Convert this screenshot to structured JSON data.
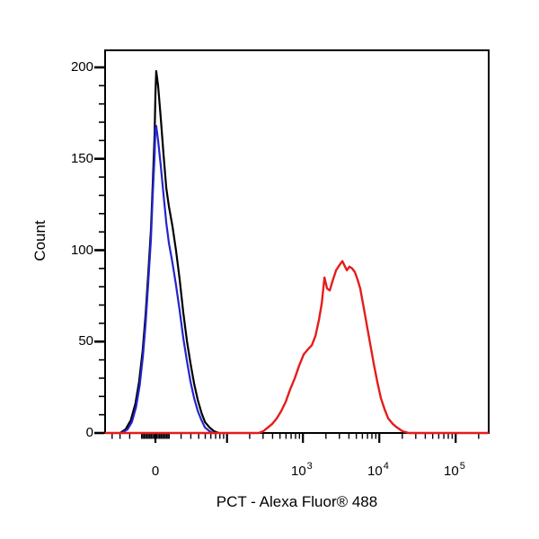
{
  "figure": {
    "y_axis": {
      "label": "Count",
      "major_ticks": [
        0,
        50,
        100,
        150,
        200
      ],
      "minor_step": 10,
      "range": [
        0,
        209
      ]
    },
    "x_axis": {
      "label": "PCT - Alexa Fluor® 488",
      "scale": "biexponential",
      "zero_label": "0",
      "decade_labels": [
        {
          "base": "10",
          "exp": "3",
          "value": 1000
        },
        {
          "base": "10",
          "exp": "4",
          "value": 10000
        },
        {
          "base": "10",
          "exp": "5",
          "value": 100000
        }
      ]
    }
  },
  "chart_data": {
    "type": "line",
    "subtype": "flow-cytometry-histogram-overlay",
    "title": "",
    "xlabel": "PCT - Alexa Fluor® 488",
    "ylabel": "Count",
    "x_scale": "biexponential (asinh), labeled ticks 0, 10^3, 10^4, 10^5",
    "x_tick_labels": [
      "0",
      "10^3",
      "10^4",
      "10^5"
    ],
    "ylim": [
      0,
      209
    ],
    "grid": false,
    "legend": "none",
    "series": [
      {
        "name": "black",
        "color": "#000000",
        "peak_x": 0,
        "peak_count": 198,
        "points": [
          [
            -30,
            0
          ],
          [
            -24,
            2
          ],
          [
            -19,
            7
          ],
          [
            -15,
            16
          ],
          [
            -12,
            28
          ],
          [
            -9.2,
            45
          ],
          [
            -7,
            65
          ],
          [
            -5.1,
            87
          ],
          [
            -3.2,
            111
          ],
          [
            -1.9,
            136
          ],
          [
            -0.6,
            163
          ],
          [
            0,
            185
          ],
          [
            0.6,
            198
          ],
          [
            1.9,
            190
          ],
          [
            3.8,
            172
          ],
          [
            5.8,
            152
          ],
          [
            7.8,
            134
          ],
          [
            9.8,
            124
          ],
          [
            12.6,
            113
          ],
          [
            15.5,
            100
          ],
          [
            18.7,
            84
          ],
          [
            22,
            66
          ],
          [
            25.8,
            50
          ],
          [
            29.7,
            38
          ],
          [
            34,
            27
          ],
          [
            38.8,
            18
          ],
          [
            44,
            11
          ],
          [
            49.6,
            6
          ],
          [
            57.6,
            3
          ],
          [
            66.4,
            1
          ],
          [
            78,
            0
          ]
        ]
      },
      {
        "name": "blue",
        "color": "#2424cc",
        "peak_x": 0,
        "peak_count": 168,
        "points": [
          [
            -28,
            0
          ],
          [
            -22,
            2
          ],
          [
            -18,
            6
          ],
          [
            -14.5,
            14
          ],
          [
            -11.5,
            26
          ],
          [
            -9,
            42
          ],
          [
            -7,
            60
          ],
          [
            -5.1,
            82
          ],
          [
            -3.2,
            106
          ],
          [
            -1.9,
            130
          ],
          [
            -0.6,
            152
          ],
          [
            0,
            166
          ],
          [
            0.6,
            168
          ],
          [
            1.9,
            160
          ],
          [
            3.8,
            146
          ],
          [
            5.8,
            130
          ],
          [
            7.8,
            115
          ],
          [
            9.8,
            104
          ],
          [
            12.6,
            93
          ],
          [
            15.5,
            81
          ],
          [
            18.7,
            67
          ],
          [
            22,
            52
          ],
          [
            25.8,
            39
          ],
          [
            29.7,
            28
          ],
          [
            34,
            19
          ],
          [
            38.8,
            12
          ],
          [
            44,
            7
          ],
          [
            49.6,
            3
          ],
          [
            57.6,
            1
          ],
          [
            64,
            0
          ]
        ]
      },
      {
        "name": "red",
        "color": "#e51c1c",
        "peak_x": 3278,
        "peak_count": 94,
        "baseline_full_width": true,
        "points": [
          [
            263,
            0
          ],
          [
            302,
            1
          ],
          [
            346,
            3
          ],
          [
            396,
            5
          ],
          [
            454,
            8
          ],
          [
            519,
            12
          ],
          [
            594,
            17
          ],
          [
            681,
            24
          ],
          [
            782,
            30
          ],
          [
            894,
            37
          ],
          [
            1025,
            43
          ],
          [
            1175,
            46
          ],
          [
            1308,
            48
          ],
          [
            1458,
            53
          ],
          [
            1624,
            62
          ],
          [
            1764,
            71
          ],
          [
            1912,
            85
          ],
          [
            2073,
            79
          ],
          [
            2244,
            78
          ],
          [
            2434,
            83
          ],
          [
            2712,
            89
          ],
          [
            3023,
            92
          ],
          [
            3278,
            94
          ],
          [
            3557,
            91
          ],
          [
            3753,
            89
          ],
          [
            4069,
            91
          ],
          [
            4413,
            90
          ],
          [
            4785,
            88
          ],
          [
            5190,
            84
          ],
          [
            5628,
            79
          ],
          [
            6103,
            71
          ],
          [
            6802,
            60
          ],
          [
            7582,
            49
          ],
          [
            8452,
            38
          ],
          [
            9421,
            28
          ],
          [
            10502,
            19
          ],
          [
            11707,
            13
          ],
          [
            13050,
            8
          ],
          [
            14939,
            5
          ],
          [
            17098,
            3
          ],
          [
            20112,
            1
          ],
          [
            24289,
            0
          ]
        ]
      }
    ]
  },
  "colors": {
    "background": "#ffffff",
    "frame": "#000000",
    "ticks": "#000000",
    "black_curve": "#000000",
    "blue_curve": "#2424cc",
    "red_curve": "#e51c1c"
  }
}
